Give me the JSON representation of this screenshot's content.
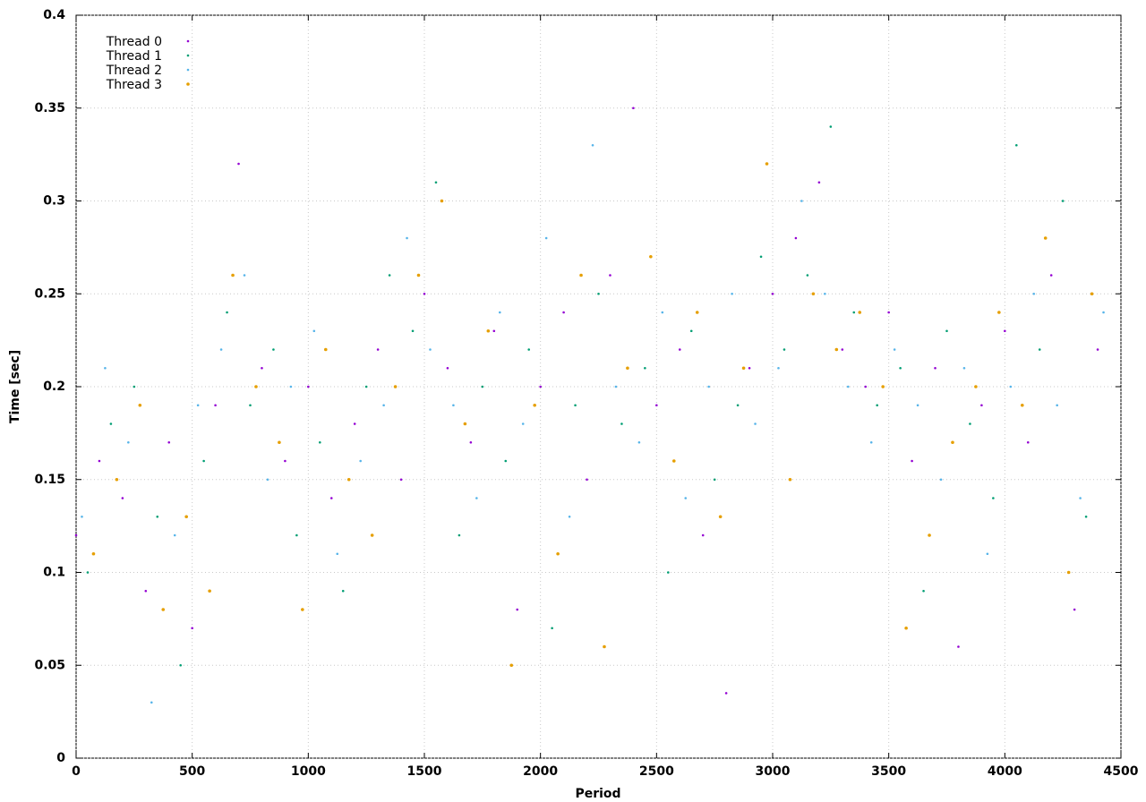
{
  "chart_data": {
    "type": "scatter",
    "xlabel": "Period",
    "ylabel": "Time [sec]",
    "xlim": [
      0,
      4500
    ],
    "ylim": [
      0,
      0.4
    ],
    "xticks": [
      0,
      500,
      1000,
      1500,
      2000,
      2500,
      3000,
      3500,
      4000,
      4500
    ],
    "yticks": [
      0,
      0.05,
      0.1,
      0.15,
      0.2,
      0.25,
      0.3,
      0.35,
      0.4
    ],
    "grid": true,
    "legend": "upper left",
    "series": [
      {
        "name": "Thread 0",
        "color": "#9400d3",
        "x": [
          0,
          100,
          200,
          300,
          400,
          500,
          600,
          700,
          800,
          900,
          1000,
          1100,
          1200,
          1300,
          1400,
          1500,
          1600,
          1700,
          1800,
          1900,
          2000,
          2100,
          2200,
          2300,
          2400,
          2500,
          2600,
          2700,
          2800,
          2900,
          3000,
          3100,
          3200,
          3300,
          3400,
          3500,
          3600,
          3700,
          3800,
          3900,
          4000,
          4100,
          4200,
          4300,
          4400
        ],
        "values": [
          0.12,
          0.16,
          0.14,
          0.09,
          0.17,
          0.07,
          0.19,
          0.32,
          0.21,
          0.16,
          0.2,
          0.14,
          0.18,
          0.22,
          0.15,
          0.25,
          0.21,
          0.17,
          0.23,
          0.08,
          0.2,
          0.24,
          0.15,
          0.26,
          0.35,
          0.19,
          0.22,
          0.12,
          0.035,
          0.21,
          0.25,
          0.28,
          0.31,
          0.22,
          0.2,
          0.24,
          0.16,
          0.21,
          0.06,
          0.19,
          0.23,
          0.17,
          0.26,
          0.08,
          0.22
        ]
      },
      {
        "name": "Thread 1",
        "color": "#009e73",
        "x": [
          50,
          150,
          250,
          350,
          450,
          550,
          650,
          750,
          850,
          950,
          1050,
          1150,
          1250,
          1350,
          1450,
          1550,
          1650,
          1750,
          1850,
          1950,
          2050,
          2150,
          2250,
          2350,
          2450,
          2550,
          2650,
          2750,
          2850,
          2950,
          3050,
          3150,
          3250,
          3350,
          3450,
          3550,
          3650,
          3750,
          3850,
          3950,
          4050,
          4150,
          4250,
          4350
        ],
        "values": [
          0.1,
          0.18,
          0.2,
          0.13,
          0.05,
          0.16,
          0.24,
          0.19,
          0.22,
          0.12,
          0.17,
          0.09,
          0.2,
          0.26,
          0.23,
          0.31,
          0.12,
          0.2,
          0.16,
          0.22,
          0.07,
          0.19,
          0.25,
          0.18,
          0.21,
          0.1,
          0.23,
          0.15,
          0.19,
          0.27,
          0.22,
          0.26,
          0.34,
          0.24,
          0.19,
          0.21,
          0.09,
          0.23,
          0.18,
          0.14,
          0.33,
          0.22,
          0.3,
          0.13
        ]
      },
      {
        "name": "Thread 2",
        "color": "#56b4e9",
        "x": [
          25,
          125,
          225,
          325,
          425,
          525,
          625,
          725,
          825,
          925,
          1025,
          1125,
          1225,
          1325,
          1425,
          1525,
          1625,
          1725,
          1825,
          1925,
          2025,
          2125,
          2225,
          2325,
          2425,
          2525,
          2625,
          2725,
          2825,
          2925,
          3025,
          3125,
          3225,
          3325,
          3425,
          3525,
          3625,
          3725,
          3825,
          3925,
          4025,
          4125,
          4225,
          4325,
          4425
        ],
        "values": [
          0.13,
          0.21,
          0.17,
          0.03,
          0.12,
          0.19,
          0.22,
          0.26,
          0.15,
          0.2,
          0.23,
          0.11,
          0.16,
          0.19,
          0.28,
          0.22,
          0.19,
          0.14,
          0.24,
          0.18,
          0.28,
          0.13,
          0.33,
          0.2,
          0.17,
          0.24,
          0.14,
          0.2,
          0.25,
          0.18,
          0.21,
          0.3,
          0.25,
          0.2,
          0.17,
          0.22,
          0.19,
          0.15,
          0.21,
          0.11,
          0.2,
          0.25,
          0.19,
          0.14,
          0.24
        ]
      },
      {
        "name": "Thread 3",
        "color": "#e69f00",
        "x": [
          75,
          175,
          275,
          375,
          475,
          575,
          675,
          775,
          875,
          975,
          1075,
          1175,
          1275,
          1375,
          1475,
          1575,
          1675,
          1775,
          1875,
          1975,
          2075,
          2175,
          2275,
          2375,
          2475,
          2575,
          2675,
          2775,
          2875,
          2975,
          3075,
          3175,
          3275,
          3375,
          3475,
          3575,
          3675,
          3775,
          3875,
          3975,
          4075,
          4175,
          4275,
          4375
        ],
        "values": [
          0.11,
          0.15,
          0.19,
          0.08,
          0.13,
          0.09,
          0.26,
          0.2,
          0.17,
          0.08,
          0.22,
          0.15,
          0.12,
          0.2,
          0.26,
          0.3,
          0.18,
          0.23,
          0.05,
          0.19,
          0.11,
          0.26,
          0.06,
          0.21,
          0.27,
          0.16,
          0.24,
          0.13,
          0.21,
          0.32,
          0.15,
          0.25,
          0.22,
          0.24,
          0.2,
          0.07,
          0.12,
          0.17,
          0.2,
          0.24,
          0.19,
          0.28,
          0.1,
          0.25
        ]
      }
    ]
  }
}
